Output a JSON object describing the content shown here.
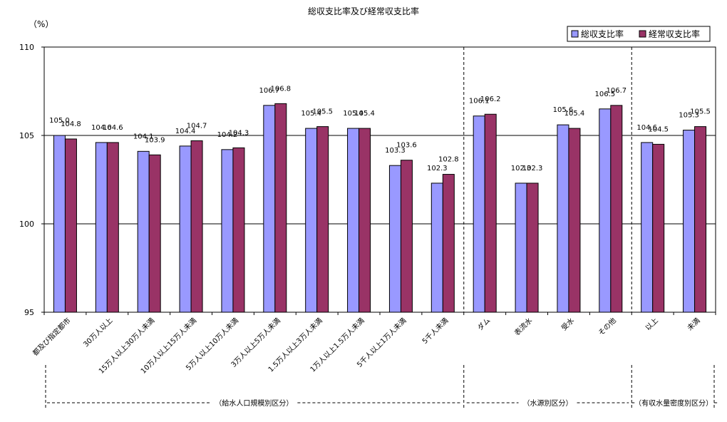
{
  "chart_data": {
    "type": "bar",
    "title": "総収支比率及び経常収支比率",
    "ylabel": "（%）",
    "ylim": [
      95,
      110
    ],
    "yticks": [
      95,
      100,
      105,
      110
    ],
    "grid": true,
    "legend_placement": "top-right",
    "categories": [
      "都及び指定都市",
      "30万人以上",
      "15万人以上30万人未満",
      "10万人以上15万人未満",
      "5万人以上10万人未満",
      "3万人以上5万人未満",
      "1.5万人以上3万人未満",
      "1万人以上1.5万人未満",
      "5千人以上1万人未満",
      "5千人未満",
      "ダム",
      "表流水",
      "受水",
      "その他",
      "以上",
      "未満"
    ],
    "series": [
      {
        "name": "総収支比率",
        "color": "#9999ff",
        "values": [
          105.0,
          104.6,
          104.1,
          104.4,
          104.2,
          106.7,
          105.4,
          105.4,
          103.3,
          102.3,
          106.1,
          102.3,
          105.6,
          106.5,
          104.6,
          105.3
        ]
      },
      {
        "name": "経常収支比率",
        "color": "#993366",
        "values": [
          104.8,
          104.6,
          103.9,
          104.7,
          104.3,
          106.8,
          105.5,
          105.4,
          103.6,
          102.8,
          106.2,
          102.3,
          105.4,
          106.7,
          104.5,
          105.5
        ]
      }
    ],
    "value_labels": [
      [
        "105.0",
        "104.6",
        "104.1",
        "104.4",
        "104.2",
        "106.7",
        "105.4",
        "105.4",
        "103.3",
        "102.3",
        "106.1",
        "102.3",
        "105.6",
        "106.5",
        "104.6",
        "105.3"
      ],
      [
        "104.8",
        "104.6",
        "103.9",
        "104.7",
        "104.3",
        "106.8",
        "105.5",
        "105.4",
        "103.6",
        "102.8",
        "106.2",
        "102.3",
        "105.4",
        "106.7",
        "104.5",
        "105.5"
      ]
    ],
    "groups": [
      {
        "label": "（給水人口規模別区分）",
        "from": 0,
        "to": 9
      },
      {
        "label": "（水源別区分）",
        "from": 10,
        "to": 13
      },
      {
        "label": "（有収水量密度別区分）",
        "from": 14,
        "to": 15
      }
    ]
  }
}
